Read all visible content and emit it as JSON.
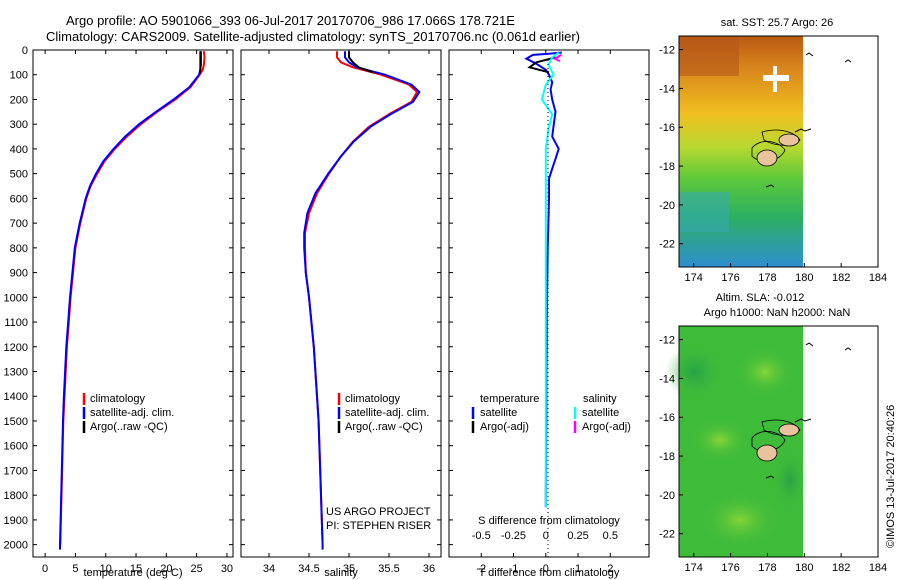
{
  "title_line1": "Argo profile: AO 5901066_393 06-Jul-2017 20170706_986 17.066S 178.721E",
  "title_line2": "Climatology: CARS2009. Satellite-adjusted climatology: synTS_20170706.nc (0.061d earlier)",
  "colors": {
    "climatology": "#ff0000",
    "satellite": "#0000ff",
    "argo": "#000000",
    "satellite_s": "#00ffff",
    "argo_s": "#ff00ff"
  },
  "legend_profile": {
    "climatology": "climatology",
    "satellite": "satellite-adj. clim.",
    "argo": "Argo(..raw -QC)"
  },
  "legend_diff": {
    "temp_header": "temperature",
    "sal_header": "salinity",
    "satellite": "satellite",
    "argo": "Argo(-adj)"
  },
  "project_line1": "US ARGO PROJECT",
  "project_line2": "PI: STEPHEN RISER",
  "watermark": "©IMOS 13-Jul-2017 20:40:26",
  "map1_title": "sat. SST: 25.7 Argo: 26",
  "map2_title1": "Altim. SLA: -0.012",
  "map2_title2": "Argo h1000: NaN h2000: NaN",
  "chart_data": [
    {
      "type": "line",
      "xlabel": "temperature (deg C)",
      "ylabel": "",
      "xlim": [
        -2,
        31
      ],
      "ylim": [
        2050,
        0
      ],
      "xticks": [
        "0",
        "5",
        "10",
        "15",
        "20",
        "25",
        "30"
      ],
      "yticks": [
        "0",
        "100",
        "200",
        "300",
        "400",
        "500",
        "600",
        "700",
        "800",
        "900",
        "1000",
        "1100",
        "1200",
        "1300",
        "1400",
        "1500",
        "1600",
        "1700",
        "1800",
        "1900",
        "2000"
      ],
      "series": [
        {
          "name": "climatology",
          "color": "#ff0000",
          "points": [
            [
              26.2,
              5
            ],
            [
              26.3,
              30
            ],
            [
              26.2,
              60
            ],
            [
              26.0,
              80
            ],
            [
              25.5,
              100
            ],
            [
              24.0,
              150
            ],
            [
              21.5,
              200
            ],
            [
              18.5,
              250
            ],
            [
              15.8,
              300
            ],
            [
              13.5,
              350
            ],
            [
              11.5,
              400
            ],
            [
              9.8,
              450
            ],
            [
              8.6,
              500
            ],
            [
              7.5,
              550
            ],
            [
              6.8,
              600
            ],
            [
              6.3,
              650
            ],
            [
              5.8,
              700
            ],
            [
              5.4,
              750
            ],
            [
              5.0,
              800
            ],
            [
              4.6,
              900
            ],
            [
              4.2,
              1000
            ],
            [
              3.9,
              1100
            ],
            [
              3.6,
              1200
            ],
            [
              3.4,
              1300
            ],
            [
              3.2,
              1400
            ],
            [
              3.0,
              1500
            ],
            [
              2.9,
              1600
            ],
            [
              2.8,
              1700
            ],
            [
              2.7,
              1800
            ],
            [
              2.6,
              1900
            ],
            [
              2.5,
              2000
            ]
          ]
        },
        {
          "name": "satellite-adj. clim.",
          "color": "#0000ff",
          "points": [
            [
              25.6,
              5
            ],
            [
              25.6,
              30
            ],
            [
              25.6,
              60
            ],
            [
              25.6,
              80
            ],
            [
              25.4,
              100
            ],
            [
              23.8,
              150
            ],
            [
              21.2,
              200
            ],
            [
              18.3,
              250
            ],
            [
              15.5,
              300
            ],
            [
              13.2,
              350
            ],
            [
              11.3,
              400
            ],
            [
              9.6,
              450
            ],
            [
              8.4,
              500
            ],
            [
              7.4,
              550
            ],
            [
              6.7,
              600
            ],
            [
              6.2,
              650
            ],
            [
              5.7,
              700
            ],
            [
              5.3,
              750
            ],
            [
              4.9,
              800
            ],
            [
              4.5,
              900
            ],
            [
              4.1,
              1000
            ],
            [
              3.8,
              1100
            ],
            [
              3.5,
              1200
            ],
            [
              3.3,
              1300
            ],
            [
              3.1,
              1400
            ],
            [
              2.95,
              1500
            ],
            [
              2.85,
              1600
            ],
            [
              2.75,
              1700
            ],
            [
              2.65,
              1800
            ],
            [
              2.55,
              1900
            ],
            [
              2.45,
              2000
            ],
            [
              2.45,
              2020
            ]
          ]
        },
        {
          "name": "Argo(..raw -QC)",
          "color": "#000000",
          "points": [
            [
              25.7,
              5
            ],
            [
              25.7,
              30
            ],
            [
              25.7,
              60
            ],
            [
              25.6,
              80
            ],
            [
              25.5,
              95
            ]
          ]
        }
      ]
    },
    {
      "type": "line",
      "xlabel": "salinity",
      "ylabel": "",
      "xlim": [
        33.65,
        36.15
      ],
      "ylim": [
        2050,
        0
      ],
      "xticks": [
        "34",
        "34.5",
        "35",
        "35.5",
        "36"
      ],
      "series": [
        {
          "name": "climatology",
          "color": "#ff0000",
          "points": [
            [
              34.85,
              5
            ],
            [
              34.85,
              30
            ],
            [
              34.9,
              50
            ],
            [
              35.05,
              70
            ],
            [
              35.4,
              100
            ],
            [
              35.75,
              140
            ],
            [
              35.85,
              170
            ],
            [
              35.78,
              210
            ],
            [
              35.5,
              260
            ],
            [
              35.25,
              310
            ],
            [
              35.05,
              370
            ],
            [
              34.9,
              430
            ],
            [
              34.75,
              500
            ],
            [
              34.6,
              580
            ],
            [
              34.5,
              660
            ],
            [
              34.45,
              740
            ],
            [
              34.45,
              800
            ],
            [
              34.46,
              900
            ],
            [
              34.5,
              1000
            ],
            [
              34.53,
              1100
            ],
            [
              34.56,
              1200
            ],
            [
              34.58,
              1300
            ],
            [
              34.6,
              1400
            ],
            [
              34.62,
              1500
            ],
            [
              34.63,
              1600
            ],
            [
              34.64,
              1700
            ],
            [
              34.65,
              1800
            ],
            [
              34.66,
              1900
            ],
            [
              34.67,
              2000
            ]
          ]
        },
        {
          "name": "satellite-adj. clim.",
          "color": "#0000ff",
          "points": [
            [
              34.95,
              5
            ],
            [
              34.95,
              30
            ],
            [
              35.0,
              50
            ],
            [
              35.1,
              70
            ],
            [
              35.45,
              100
            ],
            [
              35.78,
              140
            ],
            [
              35.88,
              170
            ],
            [
              35.8,
              210
            ],
            [
              35.52,
              260
            ],
            [
              35.27,
              310
            ],
            [
              35.06,
              370
            ],
            [
              34.9,
              430
            ],
            [
              34.74,
              500
            ],
            [
              34.58,
              580
            ],
            [
              34.48,
              660
            ],
            [
              34.44,
              740
            ],
            [
              34.44,
              800
            ],
            [
              34.46,
              900
            ],
            [
              34.5,
              1000
            ],
            [
              34.53,
              1100
            ],
            [
              34.56,
              1200
            ],
            [
              34.58,
              1300
            ],
            [
              34.6,
              1400
            ],
            [
              34.62,
              1500
            ],
            [
              34.63,
              1600
            ],
            [
              34.64,
              1700
            ],
            [
              34.65,
              1800
            ],
            [
              34.66,
              1900
            ],
            [
              34.67,
              2000
            ],
            [
              34.67,
              2020
            ]
          ]
        },
        {
          "name": "Argo(..raw -QC)",
          "color": "#000000",
          "points": [
            [
              35.0,
              5
            ],
            [
              35.0,
              30
            ],
            [
              35.05,
              50
            ],
            [
              35.12,
              70
            ],
            [
              35.3,
              90
            ]
          ]
        }
      ]
    },
    {
      "type": "line",
      "xlabel": "T difference from climatology",
      "ylabel": "",
      "xlim": [
        -3,
        3.2
      ],
      "ylim": [
        2050,
        0
      ],
      "xticks": [
        "-2",
        "-1",
        "0",
        "1",
        "2"
      ],
      "x2label": "S difference from climatology",
      "x2lim": [
        -0.75,
        0.8
      ],
      "x2ticks": [
        "-0.5",
        "-0.25",
        "0",
        "0.25",
        "0.5"
      ],
      "series": [
        {
          "name": "satellite (T)",
          "color": "#0000ff",
          "points": [
            [
              0.5,
              10
            ],
            [
              0.1,
              15
            ],
            [
              -0.4,
              20
            ],
            [
              -0.6,
              35
            ],
            [
              -0.3,
              55
            ],
            [
              0.0,
              80
            ],
            [
              0.1,
              100
            ],
            [
              0.2,
              130
            ],
            [
              0.15,
              160
            ],
            [
              0.2,
              200
            ],
            [
              0.3,
              250
            ],
            [
              0.25,
              300
            ],
            [
              0.2,
              350
            ],
            [
              0.4,
              400
            ],
            [
              0.3,
              440
            ],
            [
              0.2,
              480
            ],
            [
              0.1,
              520
            ],
            [
              0.1,
              600
            ],
            [
              0.08,
              700
            ],
            [
              0.06,
              800
            ],
            [
              0.05,
              900
            ],
            [
              0.04,
              1000
            ],
            [
              0.03,
              1100
            ],
            [
              0.03,
              1200
            ],
            [
              0.02,
              1300
            ],
            [
              0.02,
              1400
            ],
            [
              0.02,
              1500
            ],
            [
              0.01,
              1600
            ],
            [
              0.0,
              1800
            ],
            [
              0.0,
              1850
            ]
          ]
        },
        {
          "name": "Argo(-adj) (T)",
          "color": "#000000",
          "points": [
            [
              0.3,
              30
            ],
            [
              -0.3,
              50
            ],
            [
              -0.5,
              70
            ],
            [
              0.1,
              90
            ]
          ]
        },
        {
          "name": "satellite (S)",
          "color": "#00ffff",
          "points": [
            [
              0.1,
              10
            ],
            [
              0.05,
              30
            ],
            [
              0.02,
              60
            ],
            [
              0.06,
              100
            ],
            [
              0.0,
              140
            ],
            [
              -0.03,
              200
            ],
            [
              0.05,
              260
            ],
            [
              0.02,
              320
            ],
            [
              0.0,
              400
            ],
            [
              0.0,
              500
            ],
            [
              0.0,
              600
            ],
            [
              0.0,
              800
            ],
            [
              0.0,
              1000
            ],
            [
              0.0,
              1200
            ],
            [
              0.0,
              1400
            ],
            [
              0.0,
              1600
            ],
            [
              0.0,
              1800
            ],
            [
              0.0,
              1850
            ]
          ]
        },
        {
          "name": "Argo(-adj) (S)",
          "color": "#ff00ff",
          "points": [
            [
              0.12,
              20
            ],
            [
              0.07,
              35
            ],
            [
              0.11,
              45
            ]
          ]
        }
      ]
    },
    {
      "type": "heatmap",
      "title": "sat. SST: 25.7 Argo: 26",
      "xlim": [
        173.2,
        184
      ],
      "ylim": [
        -23.2,
        -11.3
      ],
      "xticks": [
        "174",
        "176",
        "178",
        "180",
        "182",
        "184"
      ],
      "yticks": [
        "-12",
        "-14",
        "-16",
        "-18",
        "-20",
        "-22"
      ],
      "data_extent_x": [
        173.2,
        180
      ],
      "argo_position": [
        178.721,
        -17.066
      ]
    },
    {
      "type": "heatmap",
      "title": "Altim. SLA: -0.012",
      "subtitle": "Argo h1000: NaN h2000: NaN",
      "xlim": [
        173.2,
        184
      ],
      "ylim": [
        -23.2,
        -11.3
      ],
      "xticks": [
        "174",
        "176",
        "178",
        "180",
        "182",
        "184"
      ],
      "yticks": [
        "-12",
        "-14",
        "-16",
        "-18",
        "-20",
        "-22"
      ],
      "data_extent_x": [
        173.2,
        180
      ],
      "argo_position": [
        178.721,
        -17.066
      ]
    }
  ]
}
